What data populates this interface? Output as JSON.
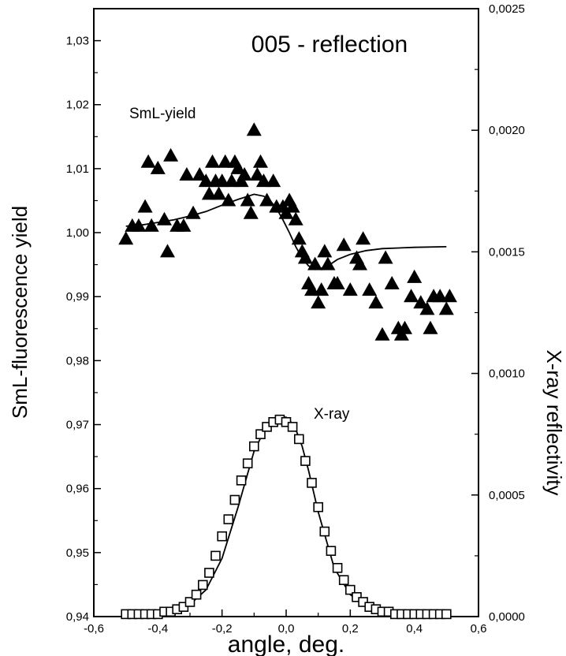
{
  "chart_data": {
    "type": "scatter",
    "title": "005 - reflection",
    "xlabel": "angle, deg.",
    "ylabel_left": "SmL-fluorescence yield",
    "ylabel_right": "X-ray reflectivity",
    "xlim": [
      -0.6,
      0.6
    ],
    "ylim_left": [
      0.94,
      1.035
    ],
    "ylim_right": [
      0.0,
      0.0025
    ],
    "x_ticks": [
      "-0,6",
      "-0,4",
      "-0,2",
      "0,0",
      "0,2",
      "0,4",
      "0,6"
    ],
    "y_left_ticks": [
      "0,94",
      "0,95",
      "0,96",
      "0,97",
      "0,98",
      "0,99",
      "1,00",
      "1,01",
      "1,02",
      "1,03"
    ],
    "y_right_ticks": [
      "0,0000",
      "0,0005",
      "0,0010",
      "0,0015",
      "0,0020",
      "0,0025"
    ],
    "series_labels": {
      "yield": "SmL-yield",
      "xray": "X-ray"
    },
    "series": [
      {
        "name": "SmL-yield",
        "axis": "left",
        "marker": "filled-triangle",
        "x": [
          -0.5,
          -0.48,
          -0.46,
          -0.44,
          -0.43,
          -0.42,
          -0.4,
          -0.38,
          -0.37,
          -0.36,
          -0.34,
          -0.32,
          -0.31,
          -0.29,
          -0.27,
          -0.25,
          -0.24,
          -0.23,
          -0.22,
          -0.21,
          -0.2,
          -0.19,
          -0.18,
          -0.17,
          -0.16,
          -0.15,
          -0.14,
          -0.13,
          -0.12,
          -0.11,
          -0.1,
          -0.09,
          -0.08,
          -0.07,
          -0.06,
          -0.04,
          -0.03,
          -0.01,
          0.0,
          0.01,
          0.02,
          0.03,
          0.04,
          0.05,
          0.06,
          0.07,
          0.08,
          0.09,
          0.1,
          0.11,
          0.12,
          0.13,
          0.15,
          0.16,
          0.18,
          0.2,
          0.22,
          0.23,
          0.24,
          0.26,
          0.28,
          0.3,
          0.31,
          0.33,
          0.35,
          0.36,
          0.37,
          0.39,
          0.4,
          0.42,
          0.44,
          0.45,
          0.46,
          0.48,
          0.5,
          0.51
        ],
        "y": [
          0.999,
          1.001,
          1.001,
          1.004,
          1.011,
          1.001,
          1.01,
          1.002,
          0.997,
          1.012,
          1.001,
          1.001,
          1.009,
          1.003,
          1.009,
          1.008,
          1.006,
          1.011,
          1.008,
          1.006,
          1.008,
          1.011,
          1.005,
          1.008,
          1.011,
          1.01,
          1.008,
          1.009,
          1.005,
          1.003,
          1.016,
          1.009,
          1.011,
          1.008,
          1.005,
          1.008,
          1.004,
          1.004,
          1.003,
          1.005,
          1.004,
          1.002,
          0.999,
          0.997,
          0.996,
          0.992,
          0.991,
          0.995,
          0.989,
          0.991,
          0.997,
          0.995,
          0.992,
          0.992,
          0.998,
          0.991,
          0.996,
          0.995,
          0.999,
          0.991,
          0.989,
          0.984,
          0.996,
          0.992,
          0.985,
          0.984,
          0.985,
          0.99,
          0.993,
          0.989,
          0.988,
          0.985,
          0.99,
          0.99,
          0.988,
          0.99
        ]
      },
      {
        "name": "SmL-yield fit",
        "axis": "left",
        "marker": "line",
        "x": [
          -0.5,
          -0.45,
          -0.4,
          -0.35,
          -0.3,
          -0.25,
          -0.2,
          -0.15,
          -0.1,
          -0.07,
          -0.05,
          -0.03,
          -0.01,
          0.01,
          0.03,
          0.05,
          0.07,
          0.1,
          0.13,
          0.16,
          0.2,
          0.25,
          0.3,
          0.4,
          0.5
        ],
        "y": [
          1.001,
          1.0012,
          1.0016,
          1.002,
          1.0026,
          1.0033,
          1.0043,
          1.0052,
          1.006,
          1.0057,
          1.005,
          1.0038,
          1.002,
          1.0,
          0.9978,
          0.996,
          0.9948,
          0.9943,
          0.9948,
          0.9958,
          0.9966,
          0.9972,
          0.9975,
          0.9977,
          0.9978
        ]
      },
      {
        "name": "X-ray",
        "axis": "right",
        "marker": "open-square",
        "x": [
          -0.5,
          -0.48,
          -0.46,
          -0.44,
          -0.42,
          -0.4,
          -0.38,
          -0.36,
          -0.34,
          -0.32,
          -0.3,
          -0.28,
          -0.26,
          -0.24,
          -0.22,
          -0.2,
          -0.18,
          -0.16,
          -0.14,
          -0.12,
          -0.1,
          -0.08,
          -0.06,
          -0.04,
          -0.02,
          0.0,
          0.02,
          0.04,
          0.06,
          0.08,
          0.1,
          0.12,
          0.14,
          0.16,
          0.18,
          0.2,
          0.22,
          0.24,
          0.26,
          0.28,
          0.3,
          0.32,
          0.34,
          0.36,
          0.38,
          0.4,
          0.42,
          0.44,
          0.46,
          0.48,
          0.5
        ],
        "y": [
          1e-05,
          1e-05,
          1e-05,
          1e-05,
          1e-05,
          1e-05,
          2e-05,
          2e-05,
          3e-05,
          4e-05,
          6e-05,
          9e-05,
          0.00013,
          0.00018,
          0.00025,
          0.00033,
          0.0004,
          0.00048,
          0.00056,
          0.00063,
          0.0007,
          0.00075,
          0.00078,
          0.0008,
          0.00081,
          0.0008,
          0.00078,
          0.00073,
          0.00064,
          0.00055,
          0.00045,
          0.00035,
          0.00027,
          0.0002,
          0.00015,
          0.00011,
          8e-05,
          6e-05,
          4e-05,
          3e-05,
          2e-05,
          2e-05,
          1e-05,
          1e-05,
          1e-05,
          1e-05,
          1e-05,
          1e-05,
          1e-05,
          1e-05,
          1e-05
        ]
      },
      {
        "name": "X-ray fit",
        "axis": "right",
        "marker": "line",
        "x": [
          -0.5,
          -0.4,
          -0.3,
          -0.25,
          -0.2,
          -0.15,
          -0.1,
          -0.07,
          -0.05,
          -0.03,
          -0.01,
          0.0,
          0.01,
          0.03,
          0.05,
          0.07,
          0.1,
          0.15,
          0.2,
          0.25,
          0.3,
          0.4,
          0.5
        ],
        "y": [
          1e-05,
          1e-05,
          5e-05,
          0.00011,
          0.00024,
          0.00045,
          0.00068,
          0.00076,
          0.00079,
          0.00081,
          0.00082,
          0.00082,
          0.00081,
          0.00077,
          0.0007,
          0.0006,
          0.00043,
          0.0002,
          9e-05,
          4e-05,
          2e-05,
          1e-05,
          1e-05
        ]
      }
    ]
  }
}
